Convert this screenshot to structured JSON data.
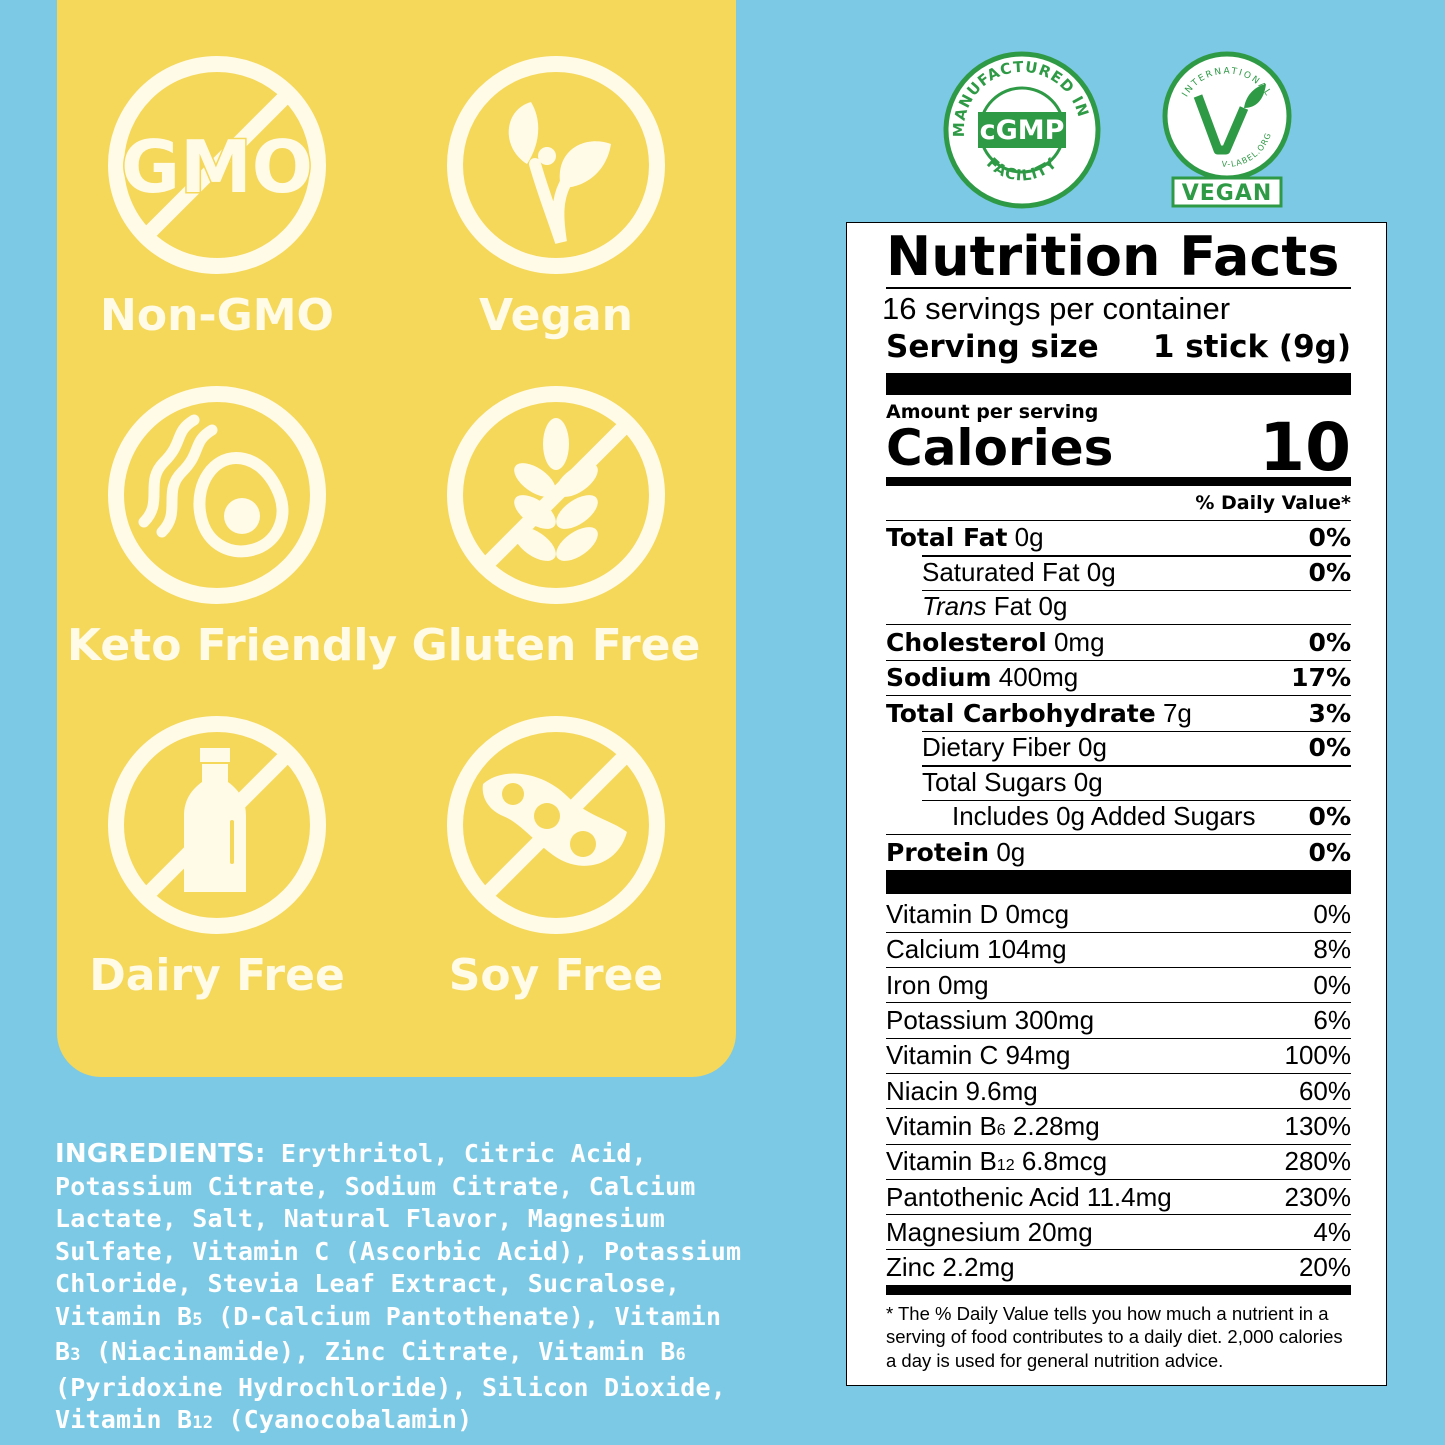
{
  "badges": [
    {
      "label": "Non-GMO",
      "icon": "no-gmo-icon",
      "text": "GMO"
    },
    {
      "label": "Vegan",
      "icon": "vegan-plant-icon"
    },
    {
      "label": "Keto Friendly",
      "icon": "avocado-icon"
    },
    {
      "label": "Gluten Free",
      "icon": "no-wheat-icon"
    },
    {
      "label": "Dairy Free",
      "icon": "no-milk-bottle-icon"
    },
    {
      "label": "Soy Free",
      "icon": "no-soybean-icon"
    }
  ],
  "seals": {
    "cgmp": {
      "ring_text": "MANUFACTURED IN A",
      "bottom_text": "FACILITY",
      "center": "cGMP",
      "color": "#2f9a46"
    },
    "vegan": {
      "ring_text": "INTERNATIONAL",
      "bottom_text": "V-LABEL.ORG",
      "label": "VEGAN",
      "color": "#2f9a46"
    }
  },
  "ingredients": {
    "heading": "INGREDIENTS:",
    "text_a": " Erythritol, Citric Acid, Potassium Citrate, Sodium Citrate, Calcium Lactate, Salt, Natural Flavor, Magnesium Sulfate, Vitamin C (Ascorbic Acid), Potassium Chloride, Stevia Leaf Extract, Sucralose, Vitamin B",
    "sub_a": "5",
    "text_b": " (D-Calcium Pantothenate), Vitamin B",
    "sub_b": "3",
    "text_c": " (Niacinamide), Zinc Citrate, Vitamin B",
    "sub_c": "6",
    "text_d": " (Pyridoxine Hydrochloride), Silicon Dioxide, Vitamin B",
    "sub_d": "12",
    "text_e": " (Cyanocobalamin)"
  },
  "nutrition": {
    "title": "Nutrition Facts",
    "servings": "16 servings per container",
    "serving_size_label": "Serving size",
    "serving_size_value": "1 stick (9g)",
    "amount_per_serving": "Amount per serving",
    "calories_label": "Calories",
    "calories_value": "10",
    "dv_header": "% Daily Value*",
    "total_fat": {
      "label": "Total Fat",
      "amount": "0g",
      "dv": "0%"
    },
    "saturated_fat": {
      "label": "Saturated Fat 0g",
      "dv": "0%"
    },
    "trans_fat": {
      "label_italic": "Trans",
      "label": " Fat 0g"
    },
    "cholesterol": {
      "label": "Cholesterol",
      "amount": "0mg",
      "dv": "0%"
    },
    "sodium": {
      "label": "Sodium",
      "amount": "400mg",
      "dv": "17%"
    },
    "total_carb": {
      "label": "Total Carbohydrate",
      "amount": "7g",
      "dv": "3%"
    },
    "fiber": {
      "label": "Dietary Fiber 0g",
      "dv": "0%"
    },
    "total_sugars": {
      "label": "Total Sugars 0g"
    },
    "added_sugars": {
      "label": "Includes 0g Added Sugars",
      "dv": "0%"
    },
    "protein": {
      "label": "Protein",
      "amount": "0g",
      "dv": "0%"
    },
    "vitamins": [
      {
        "label": "Vitamin D 0mcg",
        "dv": "0%"
      },
      {
        "label": "Calcium 104mg",
        "dv": "8%"
      },
      {
        "label": "Iron 0mg",
        "dv": "0%"
      },
      {
        "label": "Potassium 300mg",
        "dv": "6%"
      },
      {
        "label": "Vitamin C 94mg",
        "dv": "100%"
      },
      {
        "label": "Niacin 9.6mg",
        "dv": "60%"
      },
      {
        "label_pre": "Vitamin B",
        "label_sub": "6",
        "label_post": " 2.28mg",
        "dv": "130%"
      },
      {
        "label_pre": "Vitamin B",
        "label_sub": "12",
        "label_post": " 6.8mcg",
        "dv": "280%"
      },
      {
        "label": "Pantothenic Acid 11.4mg",
        "dv": "230%"
      },
      {
        "label": "Magnesium 20mg",
        "dv": "4%"
      },
      {
        "label": "Zinc 2.2mg",
        "dv": "20%"
      }
    ],
    "footnote": "* The % Daily Value tells you how much a nutrient in a serving of food contributes to a daily diet. 2,000 calories a day is used for general nutrition advice."
  }
}
